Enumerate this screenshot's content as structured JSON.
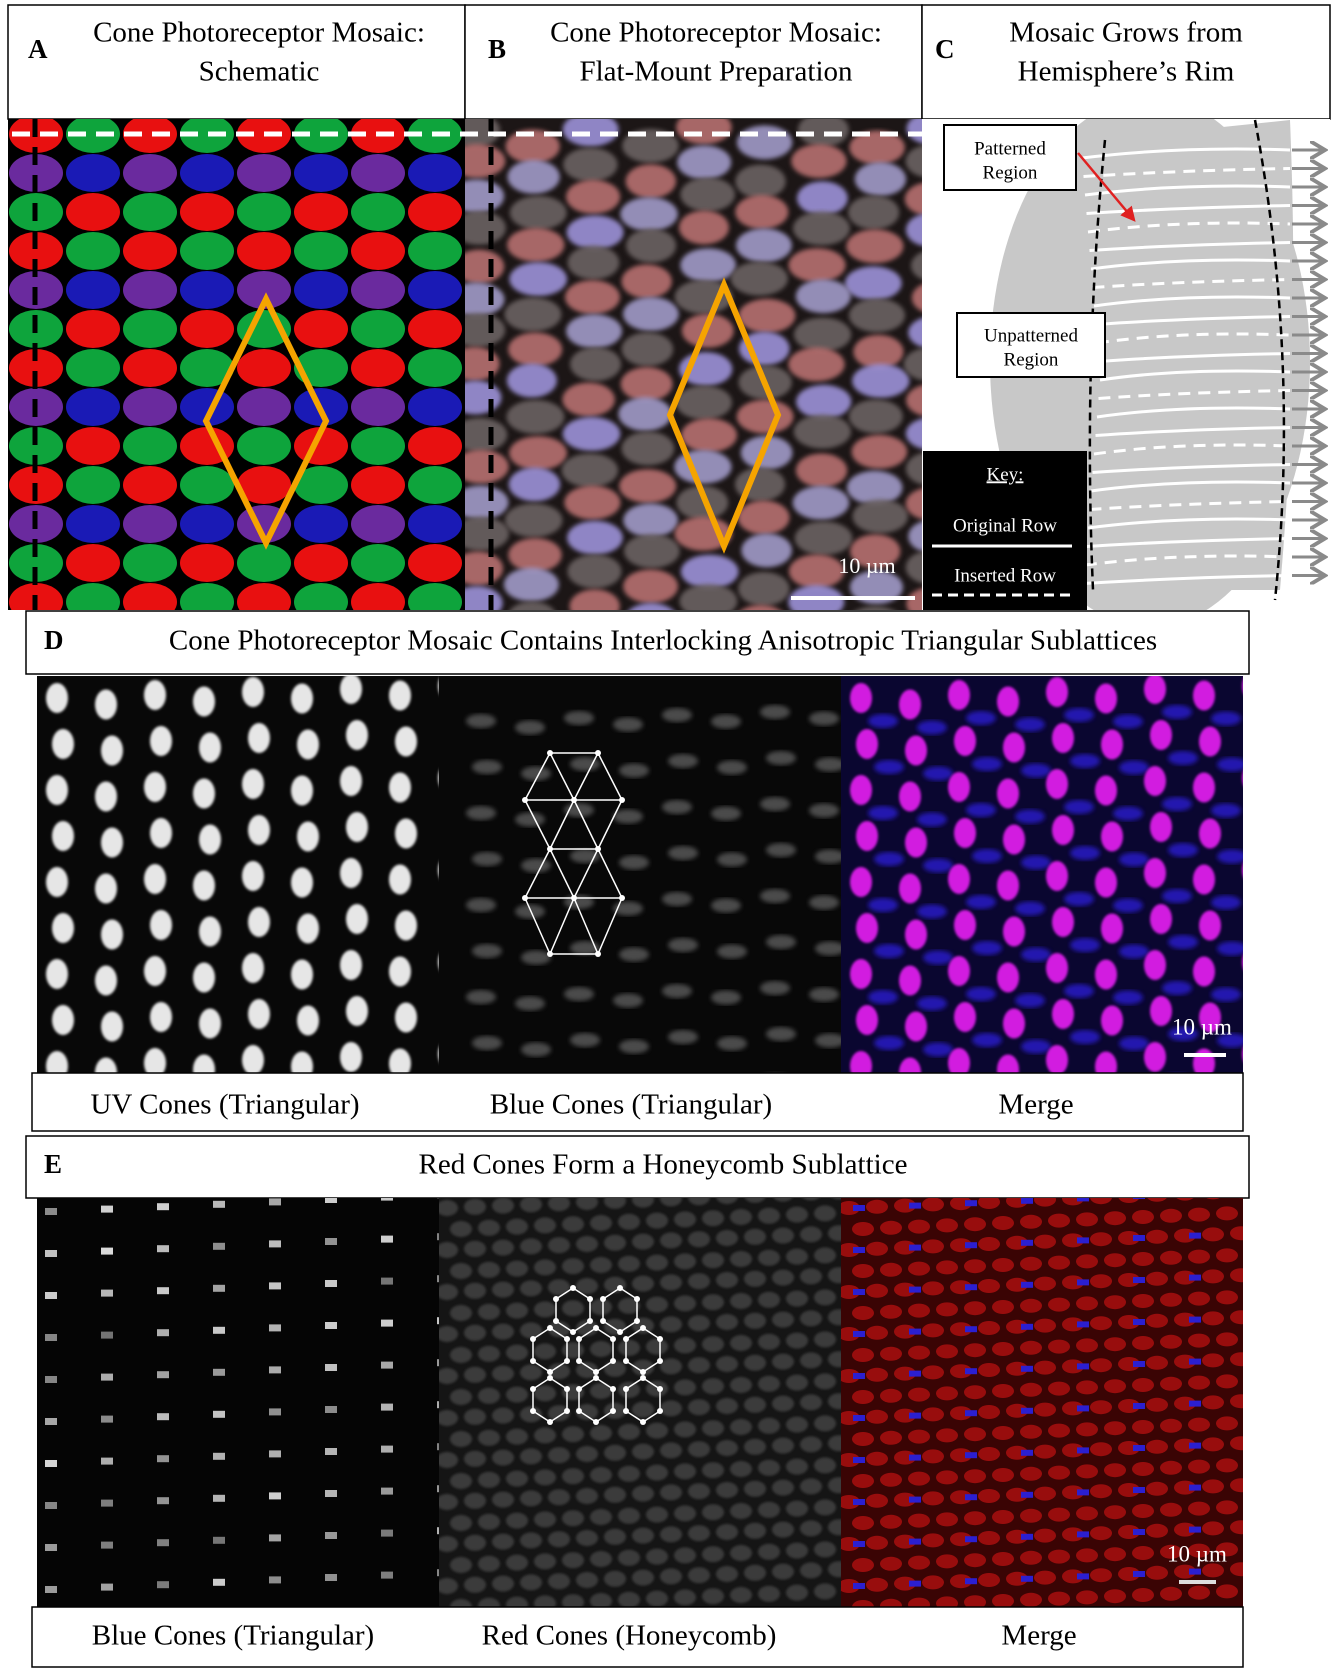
{
  "panel_a": {
    "letter": "A",
    "title": [
      "Cone Photoreceptor Mosaic:",
      "Schematic"
    ]
  },
  "panel_b": {
    "letter": "B",
    "title": [
      "Cone Photoreceptor Mosaic:",
      "Flat-Mount Preparation"
    ],
    "scale_bar": "10 µm"
  },
  "panel_c": {
    "letter": "C",
    "title": [
      "Mosaic Grows from",
      "Hemisphere’s Rim"
    ],
    "patterned_label": [
      "Patterned",
      "Region"
    ],
    "unpatterned_label": [
      "Unpatterned",
      "Region"
    ],
    "key": {
      "title": "Key:",
      "original_row": "Original Row",
      "inserted_row": "Inserted Row"
    }
  },
  "panel_d": {
    "letter": "D",
    "title": "Cone Photoreceptor Mosaic Contains Interlocking Anisotropic Triangular Sublattices",
    "captions": [
      "UV Cones (Triangular)",
      "Blue Cones (Triangular)",
      "Merge"
    ],
    "scale_bar": "10 µm"
  },
  "panel_e": {
    "letter": "E",
    "title": "Red Cones Form a Honeycomb Sublattice",
    "captions": [
      "Blue Cones (Triangular)",
      "Red Cones (Honeycomb)",
      "Merge"
    ],
    "scale_bar": "10 µm"
  }
}
